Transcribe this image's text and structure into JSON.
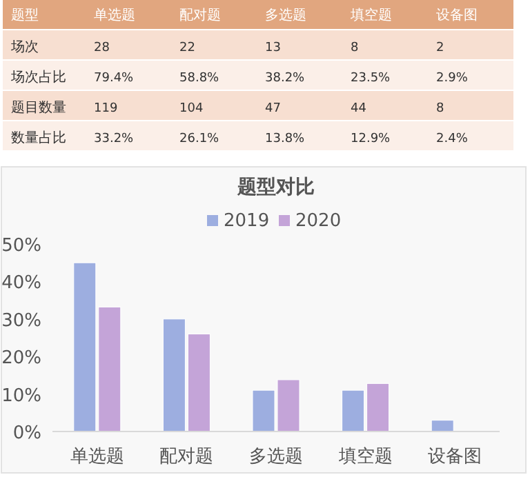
{
  "chart_data": [
    {
      "type": "other",
      "ylabel": "题型",
      "categories": [
        "单选题",
        "配对题",
        "多选题",
        "填空题",
        "设备图"
      ],
      "y_categories": [
        "场次",
        "场次占比",
        "题目数量",
        "数量占比"
      ],
      "cell_labels": [
        [
          "28",
          "22",
          "13",
          "8",
          "2"
        ],
        [
          "79.4%",
          "58.8%",
          "38.2%",
          "23.5%",
          "2.9%"
        ],
        [
          "119",
          "104",
          "47",
          "44",
          "8"
        ],
        [
          "33.2%",
          "26.1%",
          "13.8%",
          "12.9%",
          "2.4%"
        ]
      ]
    },
    {
      "type": "bar",
      "title": "题型对比",
      "categories": [
        "单选题",
        "配对题",
        "多选题",
        "填空题",
        "设备图"
      ],
      "series": [
        {
          "name": "2019",
          "color": "#9daee0",
          "values": [
            45,
            30,
            11,
            11,
            3
          ]
        },
        {
          "name": "2020",
          "color": "#c4a4d8",
          "values": [
            33.2,
            26,
            13.8,
            12.8,
            0
          ]
        }
      ],
      "ylim": [
        0,
        50
      ],
      "yticks": [
        {
          "value": 0,
          "label": "0%"
        },
        {
          "value": 10,
          "label": "10%"
        },
        {
          "value": 20,
          "label": "20%"
        },
        {
          "value": 30,
          "label": "30%"
        },
        {
          "value": 40,
          "label": "40%"
        },
        {
          "value": 50,
          "label": "50%"
        }
      ],
      "grid": false,
      "legend": "top"
    }
  ]
}
